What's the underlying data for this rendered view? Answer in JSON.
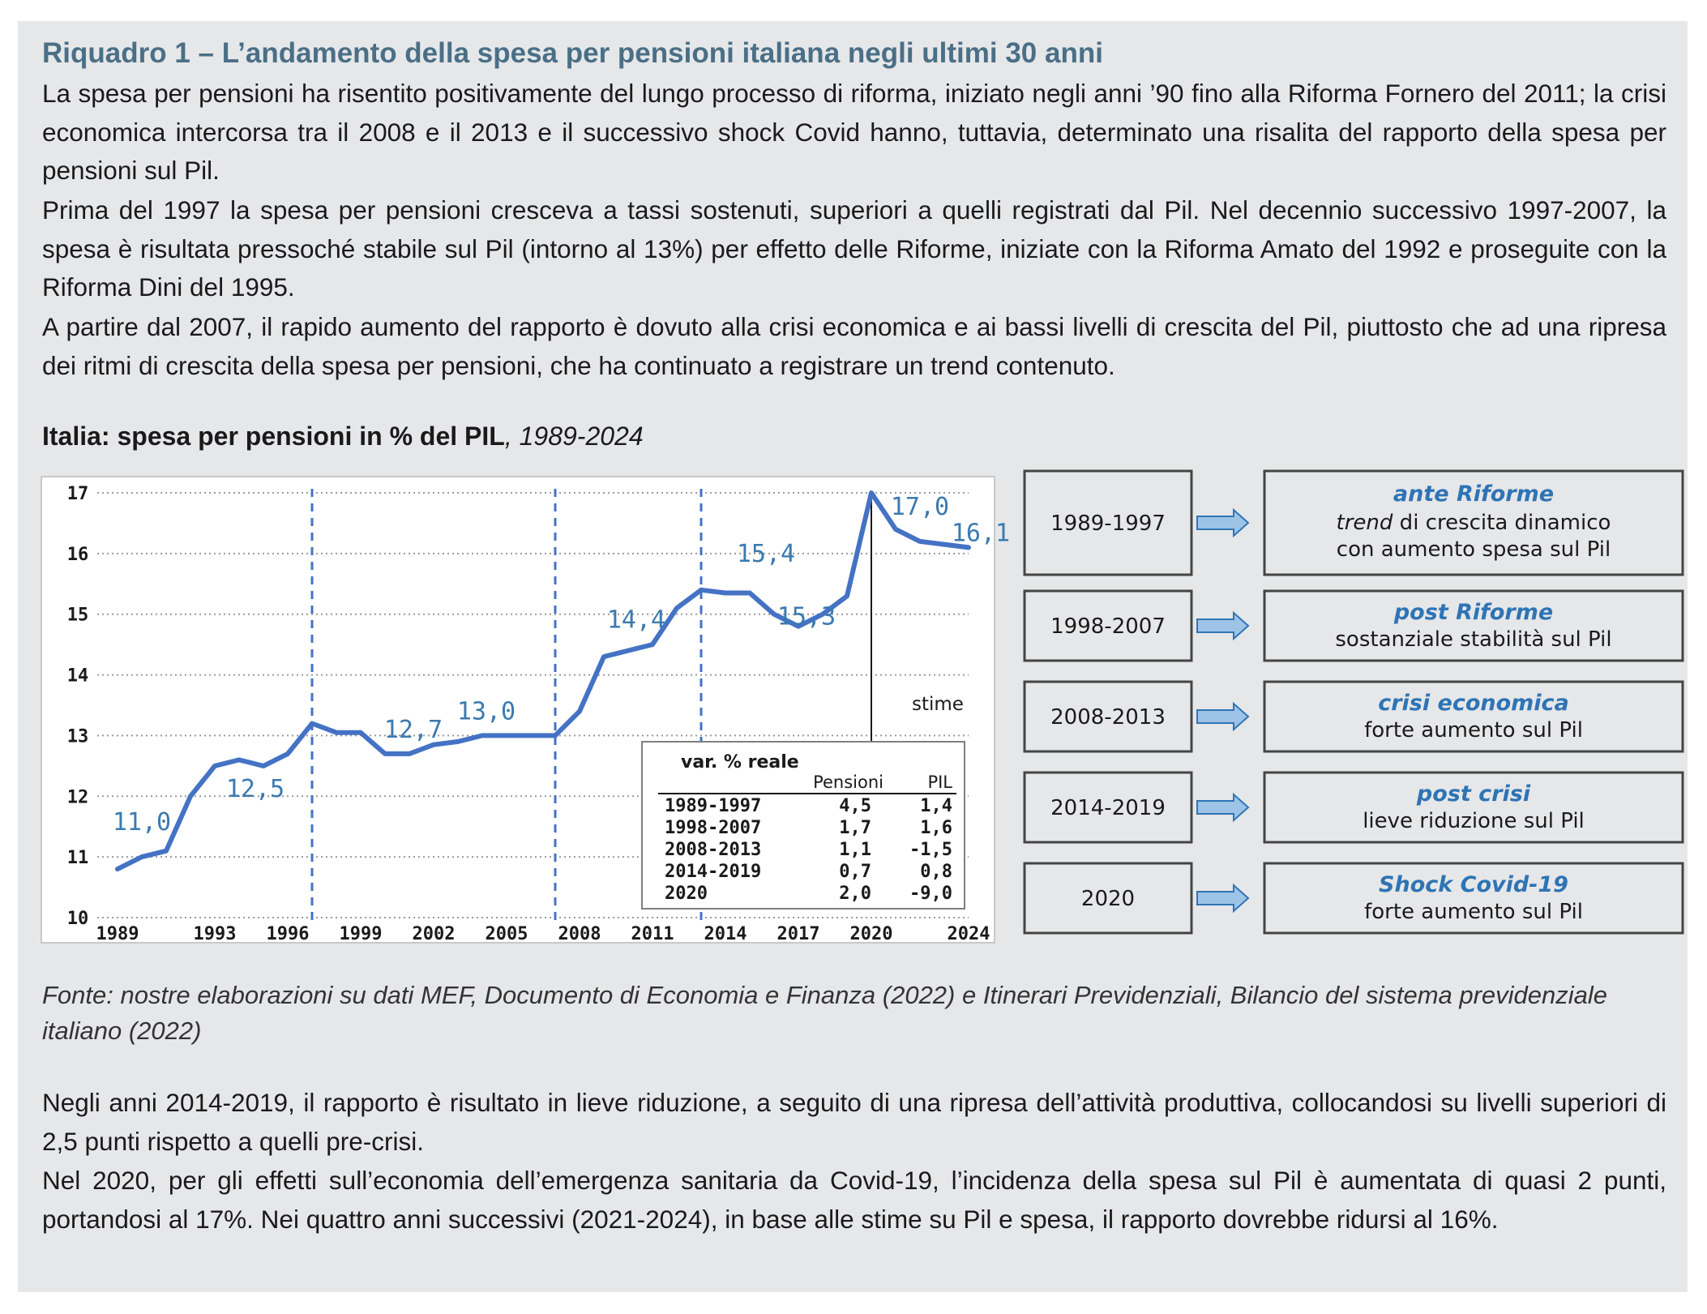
{
  "box": {
    "title": "Riquadro 1 – L’andamento della spesa per pensioni italiana negli ultimi 30 anni",
    "intro_paragraphs": [
      "La spesa per pensioni ha risentito positivamente del lungo processo di riforma, iniziato negli anni ’90 fino alla Riforma Fornero del 2011; la crisi economica intercorsa tra il 2008 e il 2013 e il successivo shock Covid hanno, tuttavia, determinato una risalita del rapporto della spesa per pensioni sul Pil.",
      "Prima del 1997 la spesa per pensioni cresceva a tassi sostenuti, superiori a quelli registrati dal Pil. Nel decennio successivo 1997-2007, la spesa è risultata pressoché stabile sul Pil (intorno al 13%) per effetto delle Riforme, iniziate con la Riforma Amato del 1992 e proseguite con la Riforma Dini del 1995.",
      "A partire dal 2007, il rapido aumento del rapporto è dovuto alla crisi economica e ai bassi livelli di crescita del Pil, piuttosto che ad una ripresa dei ritmi di crescita della spesa per pensioni, che ha continuato a registrare un trend contenuto."
    ],
    "chart_title_bold": "Italia: spesa per pensioni in % del PIL",
    "chart_title_italic": ", 1989-2024",
    "source": "Fonte: nostre elaborazioni su dati MEF, Documento di Economia e Finanza (2022) e Itinerari Previdenziali, Bilancio del sistema previdenziale italiano (2022)",
    "closing_paragraphs": [
      "Negli anni 2014-2019, il rapporto è risultato in lieve riduzione, a seguito di una ripresa dell’attività produttiva, collocandosi su livelli superiori di 2,5 punti rispetto a quelli pre-crisi.",
      "Nel 2020, per gli effetti sull’economia dell’emergenza sanitaria da Covid-19, l’incidenza della spesa sul Pil è aumentata di quasi 2 punti, portandosi al 17%. Nei quattro anni successivi (2021-2024), in base alle stime su Pil e spesa, il rapporto dovrebbe ridursi al 16%."
    ]
  },
  "colors": {
    "title": "#4a6f86",
    "line": "#4472c4",
    "label": "#3b7ab0",
    "phase_title": "#2e74b5",
    "arrow_fill": "#9dc3e6",
    "arrow_stroke": "#2e75b6"
  },
  "chart_data": {
    "type": "line",
    "title": "Italia: spesa per pensioni in % del PIL, 1989-2024",
    "xlim": [
      1989,
      2024
    ],
    "ylim": [
      10,
      17
    ],
    "y_ticks": [
      "10",
      "11",
      "12",
      "13",
      "14",
      "15",
      "16",
      "17"
    ],
    "x_ticks": [
      "1989",
      "1993",
      "1996",
      "1999",
      "2002",
      "2005",
      "2008",
      "2011",
      "2014",
      "2017",
      "2020",
      "2024"
    ],
    "grid": "horizontal-dotted",
    "x": [
      1989,
      1990,
      1991,
      1992,
      1993,
      1994,
      1995,
      1996,
      1997,
      1998,
      1999,
      2000,
      2001,
      2002,
      2003,
      2004,
      2005,
      2006,
      2007,
      2008,
      2009,
      2010,
      2011,
      2012,
      2013,
      2014,
      2015,
      2016,
      2017,
      2018,
      2019,
      2020,
      2021,
      2022,
      2023,
      2024
    ],
    "values": [
      10.8,
      11.0,
      11.1,
      12.0,
      12.5,
      12.6,
      12.5,
      12.7,
      13.2,
      13.05,
      13.05,
      12.7,
      12.7,
      12.85,
      12.9,
      13.0,
      13.0,
      13.0,
      13.0,
      13.4,
      14.3,
      14.4,
      14.5,
      15.1,
      15.4,
      15.35,
      15.35,
      15.0,
      14.8,
      15.0,
      15.3,
      17.0,
      16.4,
      16.2,
      16.15,
      16.1
    ],
    "phase_dividers": [
      1997,
      2007,
      2013
    ],
    "estimate_divider": 2020,
    "estimate_label": "stime",
    "annotations": [
      {
        "x": 1990,
        "y": 11.0,
        "text": "11,0"
      },
      {
        "x": 1995,
        "y": 12.5,
        "text": "12,5"
      },
      {
        "x": 2001,
        "y": 12.7,
        "text": "12,7"
      },
      {
        "x": 2005,
        "y": 13.0,
        "text": "13,0"
      },
      {
        "x": 2011,
        "y": 14.4,
        "text": "14,4"
      },
      {
        "x": 2015,
        "y": 15.4,
        "text": "15,4"
      },
      {
        "x": 2017,
        "y": 15.3,
        "text": "15,3"
      },
      {
        "x": 2021,
        "y": 17.0,
        "text": "17,0"
      },
      {
        "x": 2024,
        "y": 16.1,
        "text": "16,1"
      }
    ],
    "inset_table": {
      "title": "var. % reale",
      "headers": [
        "Pensioni",
        "PIL"
      ],
      "rows": [
        [
          "1989-1997",
          "4,5",
          "1,4"
        ],
        [
          "1998-2007",
          "1,7",
          "1,6"
        ],
        [
          "2008-2013",
          "1,1",
          "-1,5"
        ],
        [
          "2014-2019",
          "0,7",
          "0,8"
        ],
        [
          "2020",
          "2,0",
          "-9,0"
        ]
      ]
    }
  },
  "phases": [
    {
      "period": "1989-1997",
      "title": "ante Riforme",
      "desc_italic": "trend",
      "desc": " di crescita dinamico",
      "desc2": "con aumento spesa sul Pil"
    },
    {
      "period": "1998-2007",
      "title": "post Riforme",
      "desc_italic": "",
      "desc": "sostanziale stabilità sul Pil",
      "desc2": ""
    },
    {
      "period": "2008-2013",
      "title": "crisi economica",
      "desc_italic": "",
      "desc": "forte aumento sul Pil",
      "desc2": ""
    },
    {
      "period": "2014-2019",
      "title": "post crisi",
      "desc_italic": "",
      "desc": "lieve riduzione sul Pil",
      "desc2": ""
    },
    {
      "period": "2020",
      "title": "Shock Covid-19",
      "desc_italic": "",
      "desc": "forte aumento sul Pil",
      "desc2": ""
    }
  ]
}
